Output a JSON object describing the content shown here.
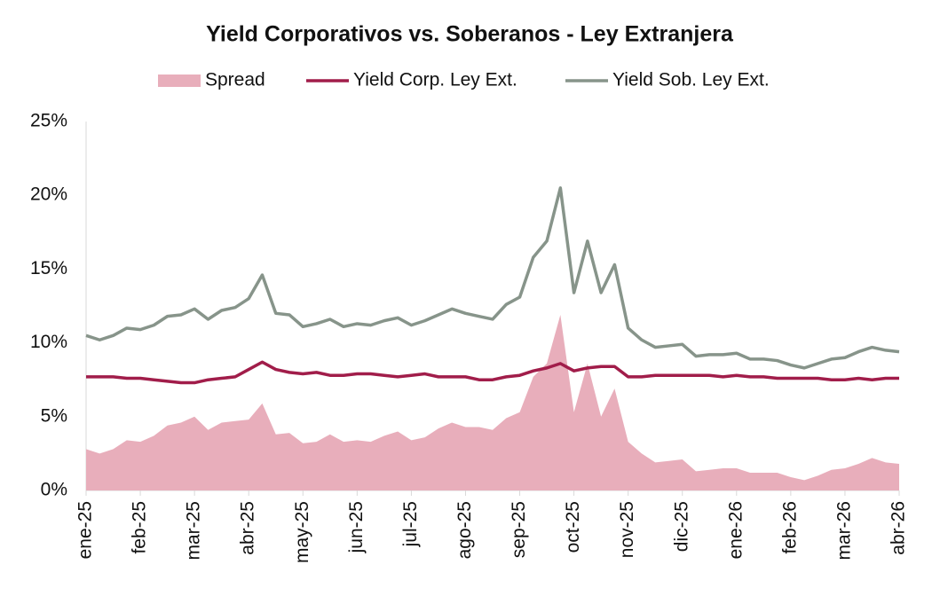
{
  "chart_data": {
    "type": "line",
    "title": "Yield Corporativos vs. Soberanos - Ley Extranjera",
    "categories": [
      "ene-25",
      null,
      null,
      null,
      "feb-25",
      null,
      null,
      null,
      "mar-25",
      null,
      null,
      null,
      "abr-25",
      null,
      null,
      null,
      "may-25",
      null,
      null,
      null,
      "jun-25",
      null,
      null,
      null,
      "jul-25",
      null,
      null,
      null,
      "ago-25",
      null,
      null,
      null,
      "sep-25",
      null,
      null,
      null,
      "oct-25",
      null,
      null,
      null,
      "nov-25",
      null,
      null,
      null,
      "dic-25",
      null,
      null,
      null,
      "ene-26",
      null,
      null,
      null,
      "feb-26",
      null,
      null,
      null,
      "mar-26",
      null,
      null,
      null,
      "abr-26"
    ],
    "series": [
      {
        "name": "Spread",
        "style": "area",
        "color": "#e8aebb",
        "values": [
          2.8,
          2.5,
          2.8,
          3.4,
          3.3,
          3.7,
          4.4,
          4.6,
          5.0,
          4.1,
          4.6,
          4.7,
          4.8,
          5.9,
          3.8,
          3.9,
          3.2,
          3.3,
          3.8,
          3.3,
          3.4,
          3.3,
          3.7,
          4.0,
          3.4,
          3.6,
          4.2,
          4.6,
          4.3,
          4.3,
          4.1,
          4.9,
          5.3,
          7.7,
          8.6,
          11.9,
          5.3,
          8.6,
          5.0,
          6.9,
          3.3,
          2.5,
          1.9,
          2.0,
          2.1,
          1.3,
          1.4,
          1.5,
          1.5,
          1.2,
          1.2,
          1.2,
          0.9,
          0.7,
          1.0,
          1.4,
          1.5,
          1.8,
          2.2,
          1.9,
          1.8
        ]
      },
      {
        "name": "Yield Corp. Ley Ext.",
        "style": "line",
        "color": "#a11d4a",
        "values": [
          7.7,
          7.7,
          7.7,
          7.6,
          7.6,
          7.5,
          7.4,
          7.3,
          7.3,
          7.5,
          7.6,
          7.7,
          8.2,
          8.7,
          8.2,
          8.0,
          7.9,
          8.0,
          7.8,
          7.8,
          7.9,
          7.9,
          7.8,
          7.7,
          7.8,
          7.9,
          7.7,
          7.7,
          7.7,
          7.5,
          7.5,
          7.7,
          7.8,
          8.1,
          8.3,
          8.6,
          8.1,
          8.3,
          8.4,
          8.4,
          7.7,
          7.7,
          7.8,
          7.8,
          7.8,
          7.8,
          7.8,
          7.7,
          7.8,
          7.7,
          7.7,
          7.6,
          7.6,
          7.6,
          7.6,
          7.5,
          7.5,
          7.6,
          7.5,
          7.6,
          7.6
        ]
      },
      {
        "name": "Yield Sob. Ley Ext.",
        "style": "line",
        "color": "#87948a",
        "values": [
          10.5,
          10.2,
          10.5,
          11.0,
          10.9,
          11.2,
          11.8,
          11.9,
          12.3,
          11.6,
          12.2,
          12.4,
          13.0,
          14.6,
          12.0,
          11.9,
          11.1,
          11.3,
          11.6,
          11.1,
          11.3,
          11.2,
          11.5,
          11.7,
          11.2,
          11.5,
          11.9,
          12.3,
          12.0,
          11.8,
          11.6,
          12.6,
          13.1,
          15.8,
          16.9,
          20.5,
          13.4,
          16.9,
          13.4,
          15.3,
          11.0,
          10.2,
          9.7,
          9.8,
          9.9,
          9.1,
          9.2,
          9.2,
          9.3,
          8.9,
          8.9,
          8.8,
          8.5,
          8.3,
          8.6,
          8.9,
          9.0,
          9.4,
          9.7,
          9.5,
          9.4
        ]
      }
    ],
    "ylim": [
      0,
      25
    ],
    "yticks": [
      {
        "value": 0,
        "label": "0%"
      },
      {
        "value": 5,
        "label": "5%"
      },
      {
        "value": 10,
        "label": "10%"
      },
      {
        "value": 15,
        "label": "15%"
      },
      {
        "value": 20,
        "label": "20%"
      },
      {
        "value": 25,
        "label": "25%"
      }
    ],
    "legend": "top"
  }
}
